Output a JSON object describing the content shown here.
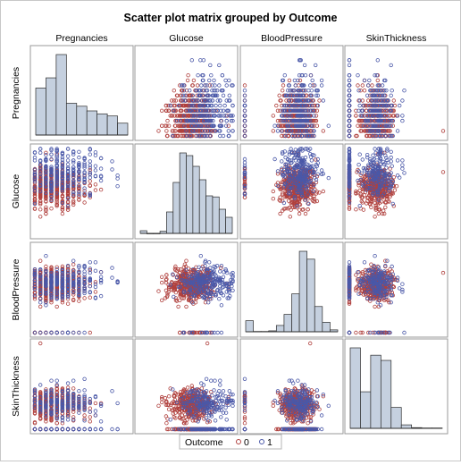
{
  "chart_data": {
    "type": "scatter",
    "title": "Scatter plot matrix grouped by Outcome",
    "variables": [
      "Pregnancies",
      "Glucose",
      "BloodPressure",
      "SkinThickness"
    ],
    "ranges": {
      "Pregnancies": [
        0,
        17
      ],
      "Glucose": [
        0,
        200
      ],
      "BloodPressure": [
        0,
        122
      ],
      "SkinThickness": [
        0,
        99
      ]
    },
    "diagonal": "histogram",
    "histograms": {
      "Pregnancies": {
        "bins": 9,
        "counts": [
          111,
          135,
          190,
          75,
          68,
          57,
          50,
          45,
          28
        ]
      },
      "Glucose": {
        "bins": 14,
        "counts": [
          5,
          0,
          0,
          4,
          40,
          95,
          150,
          145,
          125,
          100,
          70,
          68,
          45,
          30
        ]
      },
      "BloodPressure": {
        "bins": 12,
        "counts": [
          35,
          1,
          1,
          3,
          20,
          55,
          120,
          255,
          230,
          80,
          30,
          6
        ]
      },
      "SkinThickness": {
        "bins": 9,
        "counts": [
          231,
          105,
          210,
          195,
          60,
          10,
          2,
          1,
          1
        ]
      }
    },
    "groups": [
      {
        "name": "0",
        "color": "#b0413e",
        "n": 500
      },
      {
        "name": "1",
        "color": "#4a58a8",
        "n": 268
      }
    ],
    "legend": {
      "title": "Outcome",
      "position": "bottom",
      "entries": [
        "0",
        "1"
      ]
    },
    "grid": false
  }
}
